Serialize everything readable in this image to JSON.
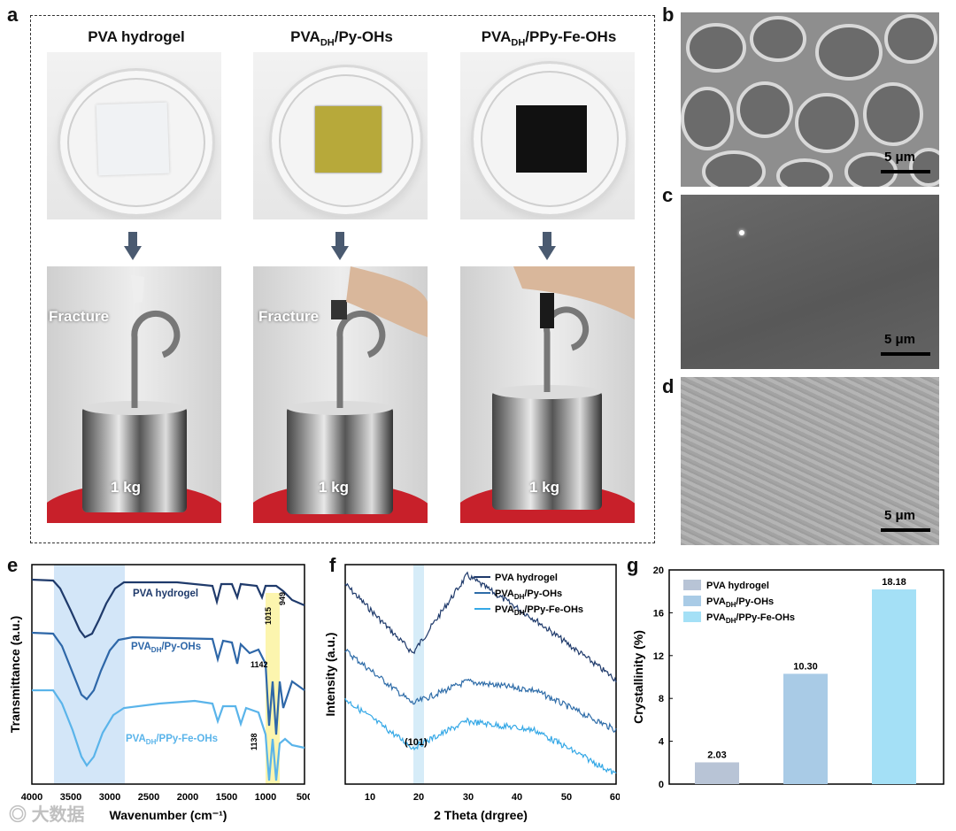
{
  "panels": {
    "a": "a",
    "b": "b",
    "c": "c",
    "d": "d",
    "e": "e",
    "f": "f",
    "g": "g"
  },
  "columns": [
    {
      "title_main": "PVA hydrogel",
      "title_sub": "",
      "title_tail": ""
    },
    {
      "title_main": "PVA",
      "title_sub": "DH",
      "title_tail": "/Py-OHs"
    },
    {
      "title_main": "PVA",
      "title_sub": "DH",
      "title_tail": "/PPy-Fe-OHs"
    }
  ],
  "photos": {
    "fracture_label": "Fracture",
    "weight_label": "1 kg"
  },
  "sem": {
    "scale": "5 μm"
  },
  "ftir": {
    "xlabel": "Wavenumber (cm⁻¹)",
    "ylabel": "Transmittance (a.u.)",
    "xticks": [
      "4000",
      "3500",
      "3000",
      "2500",
      "2000",
      "1500",
      "1000",
      "500"
    ],
    "series_labels": [
      {
        "main": "PVA hydrogel",
        "sub": "",
        "tail": ""
      },
      {
        "main": "PVA",
        "sub": "DH",
        "tail": "/Py-OHs"
      },
      {
        "main": "PVA",
        "sub": "DH",
        "tail": "/PPy-Fe-OHs"
      }
    ],
    "peaks": [
      "1015",
      "949",
      "1142",
      "1138"
    ],
    "colors": [
      "#1f3a6b",
      "#2e67a8",
      "#5ab4ea"
    ]
  },
  "chart_data": [
    {
      "type": "bar",
      "title": "",
      "xlabel": "",
      "ylabel": "Crystallinity (%)",
      "categories": [
        "PVA hydrogel",
        "PVADH/Py-OHs",
        "PVADH/PPy-Fe-OHs"
      ],
      "values": [
        2.03,
        10.3,
        18.18
      ],
      "value_labels": [
        "2.03",
        "10.30",
        "18.18"
      ],
      "ylim": [
        0,
        20
      ],
      "yticks": [
        "0",
        "4",
        "8",
        "12",
        "16",
        "20"
      ],
      "colors": [
        "#b8c4d6",
        "#a9cbe6",
        "#a4e0f6"
      ],
      "legend": "top-left"
    },
    {
      "type": "line",
      "title": "",
      "xlabel": "2 Theta (drgree)",
      "ylabel": "Intensity (a.u.)",
      "xlim": [
        5,
        60
      ],
      "xticks": [
        "10",
        "20",
        "30",
        "40",
        "50",
        "60"
      ],
      "annotation": "(101)",
      "series": [
        {
          "name": "PVA hydrogel",
          "color": "#1f3a6b"
        },
        {
          "name": "PVADH/Py-OHs",
          "color": "#2e6ca8"
        },
        {
          "name": "PVADH/PPy-Fe-OHs",
          "color": "#35a8e6"
        }
      ]
    }
  ],
  "watermark": "大数据"
}
